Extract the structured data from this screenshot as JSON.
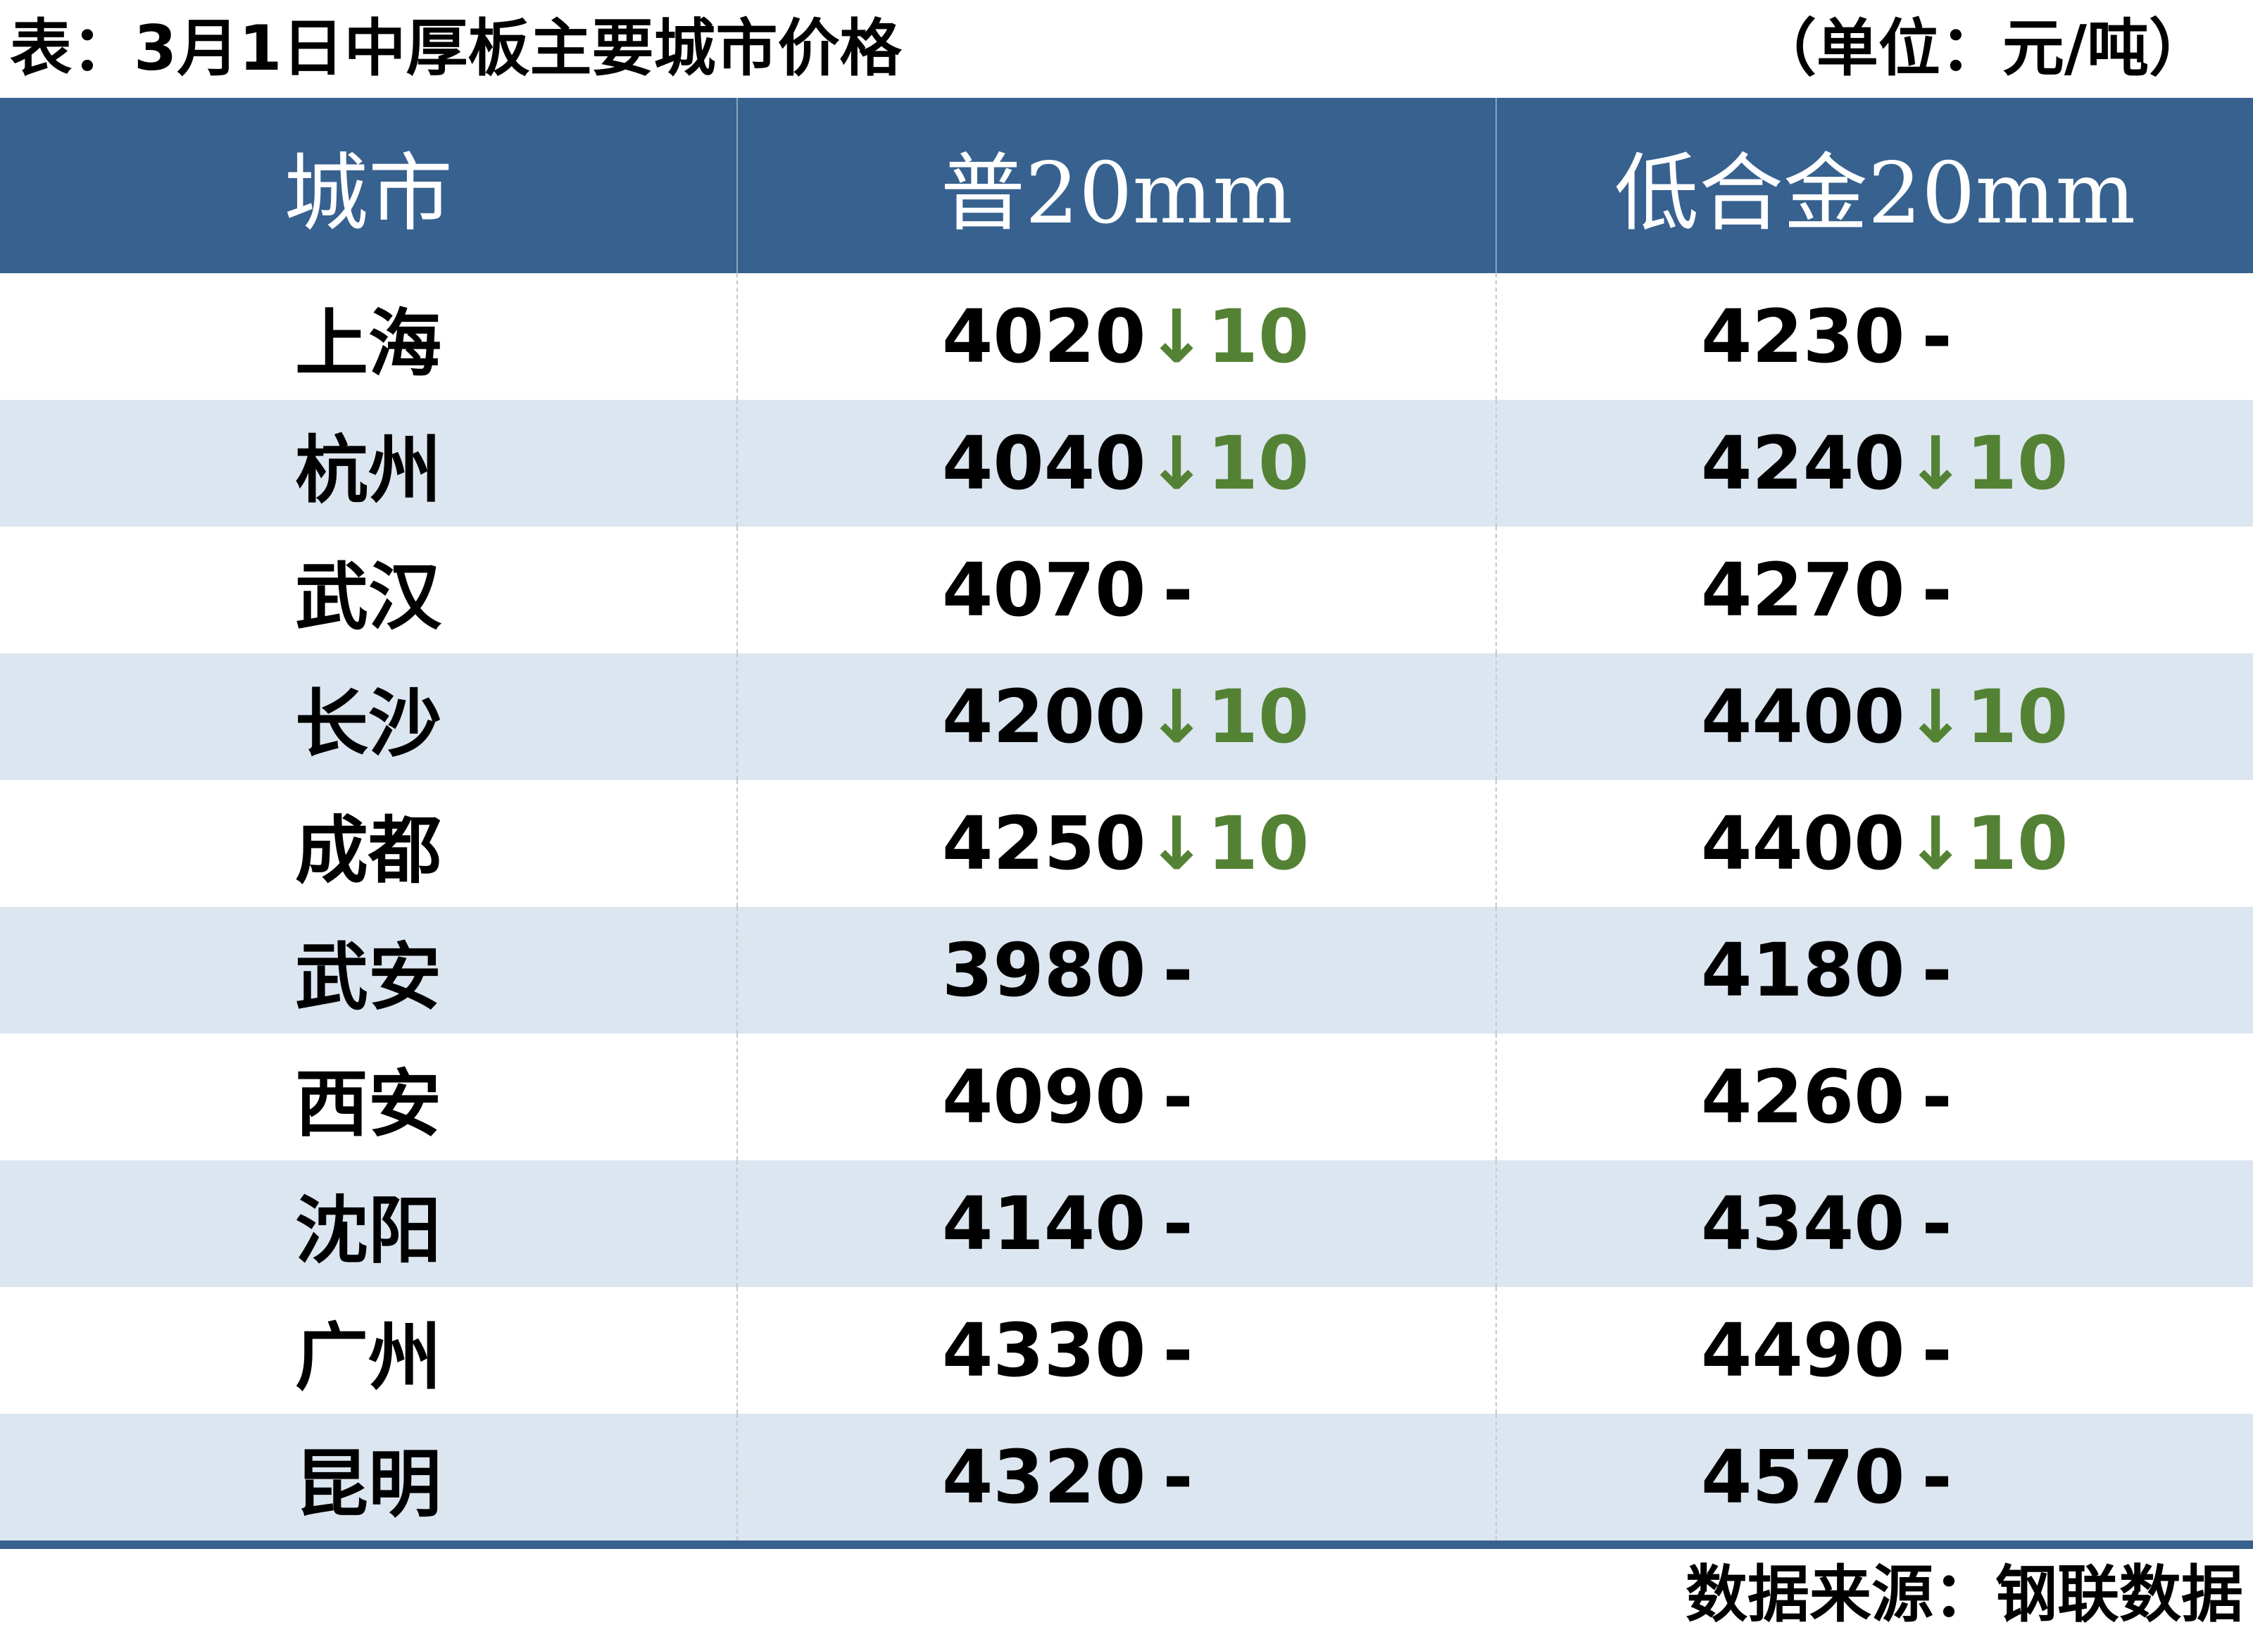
{
  "title": "表：3月1日中厚板主要城市价格",
  "unit": "（单位：元/吨）",
  "colors": {
    "header_bg": "#37618f",
    "stripe_bg": "#dce6f0",
    "down_color": "#548235"
  },
  "table": {
    "headers": [
      "城市",
      "普20mm",
      "低合金20mm"
    ],
    "rows": [
      {
        "city": "上海",
        "p20": {
          "price": "4020",
          "change": "↓10"
        },
        "lh20": {
          "price": "4230",
          "change": "-"
        }
      },
      {
        "city": "杭州",
        "p20": {
          "price": "4040",
          "change": "↓10"
        },
        "lh20": {
          "price": "4240",
          "change": "↓10"
        }
      },
      {
        "city": "武汉",
        "p20": {
          "price": "4070",
          "change": "-"
        },
        "lh20": {
          "price": "4270",
          "change": "-"
        }
      },
      {
        "city": "长沙",
        "p20": {
          "price": "4200",
          "change": "↓10"
        },
        "lh20": {
          "price": "4400",
          "change": "↓10"
        }
      },
      {
        "city": "成都",
        "p20": {
          "price": "4250",
          "change": "↓10"
        },
        "lh20": {
          "price": "4400",
          "change": "↓10"
        }
      },
      {
        "city": "武安",
        "p20": {
          "price": "3980",
          "change": "-"
        },
        "lh20": {
          "price": "4180",
          "change": "-"
        }
      },
      {
        "city": "西安",
        "p20": {
          "price": "4090",
          "change": "-"
        },
        "lh20": {
          "price": "4260",
          "change": "-"
        }
      },
      {
        "city": "沈阳",
        "p20": {
          "price": "4140",
          "change": "-"
        },
        "lh20": {
          "price": "4340",
          "change": "-"
        }
      },
      {
        "city": "广州",
        "p20": {
          "price": "4330",
          "change": "-"
        },
        "lh20": {
          "price": "4490",
          "change": "-"
        }
      },
      {
        "city": "昆明",
        "p20": {
          "price": "4320",
          "change": "-"
        },
        "lh20": {
          "price": "4570",
          "change": "-"
        }
      }
    ]
  },
  "source": "数据来源：钢联数据"
}
